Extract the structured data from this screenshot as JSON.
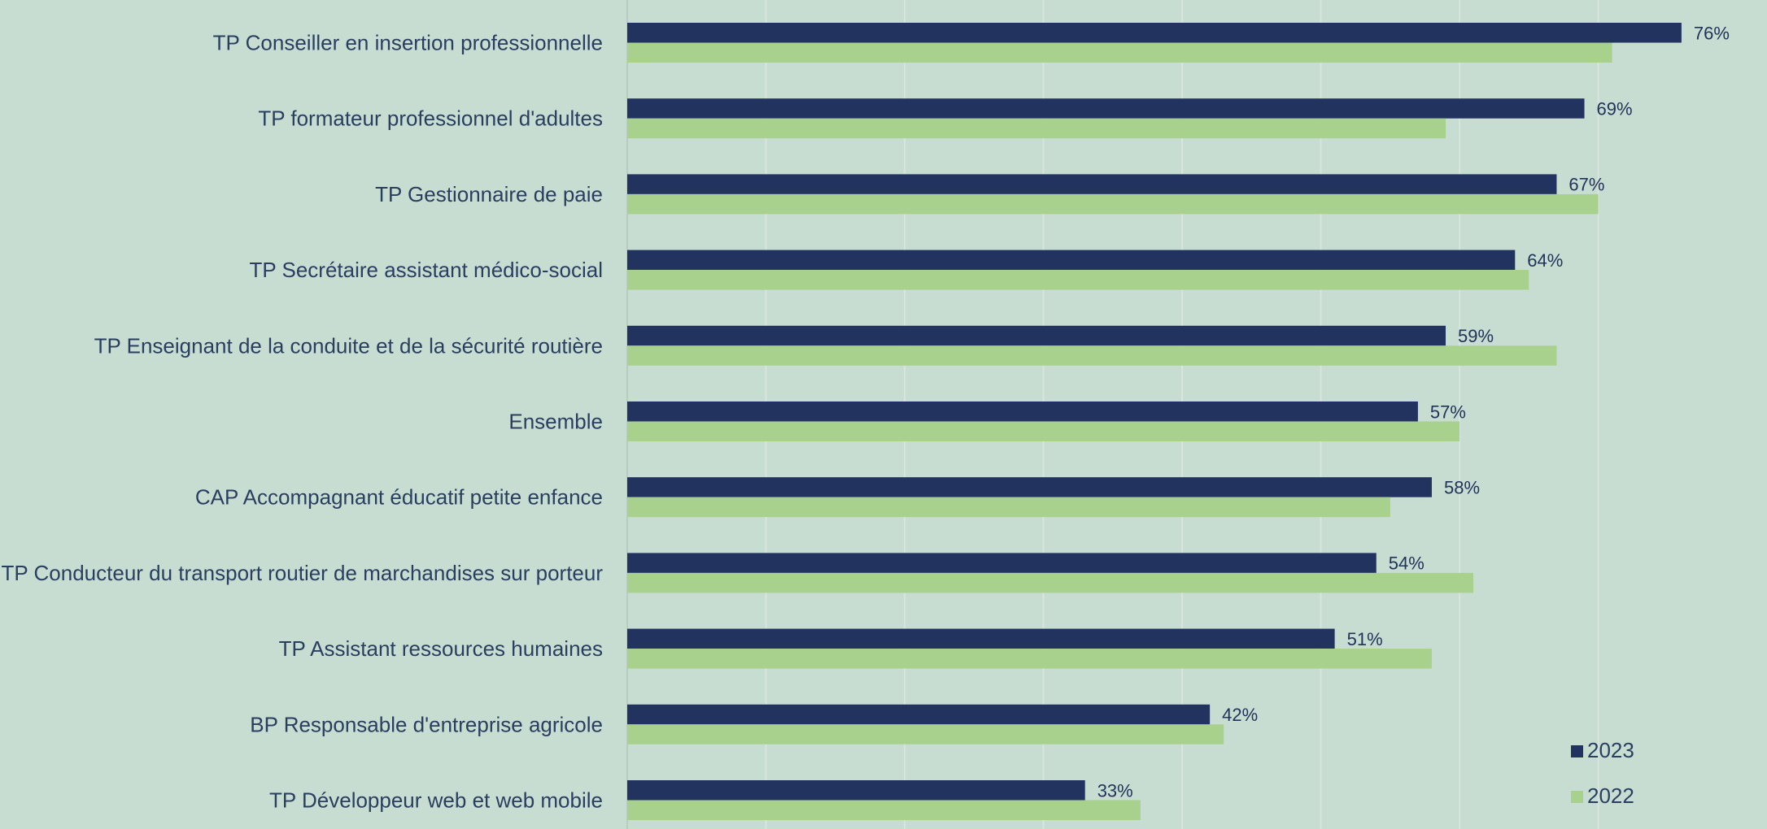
{
  "chart_data": {
    "type": "bar",
    "orientation": "horizontal",
    "categories": [
      "TP Conseiller en insertion professionnelle",
      "TP formateur professionnel d'adultes",
      "TP Gestionnaire de paie",
      "TP Secrétaire assistant médico-social",
      "TP Enseignant de la conduite et de la sécurité routière",
      "Ensemble",
      "CAP Accompagnant éducatif petite enfance",
      "TP Conducteur du transport routier de marchandises sur porteur",
      "TP Assistant ressources humaines",
      "BP Responsable d'entreprise agricole",
      "TP Développeur web et web mobile"
    ],
    "series": [
      {
        "name": "2023",
        "color": "#22335f",
        "values": [
          76,
          69,
          67,
          64,
          59,
          57,
          58,
          54,
          51,
          42,
          33
        ],
        "labels": [
          "76%",
          "69%",
          "67%",
          "64%",
          "59%",
          "57%",
          "58%",
          "54%",
          "51%",
          "42%",
          "33%"
        ]
      },
      {
        "name": "2022",
        "color": "#a9d18e",
        "values": [
          71,
          59,
          70,
          65,
          67,
          60,
          55,
          61,
          58,
          43,
          37
        ]
      }
    ],
    "xlim": [
      0,
      78
    ],
    "grid": true,
    "legend_position": "bottom-right",
    "title": "",
    "xlabel": "",
    "ylabel": ""
  }
}
